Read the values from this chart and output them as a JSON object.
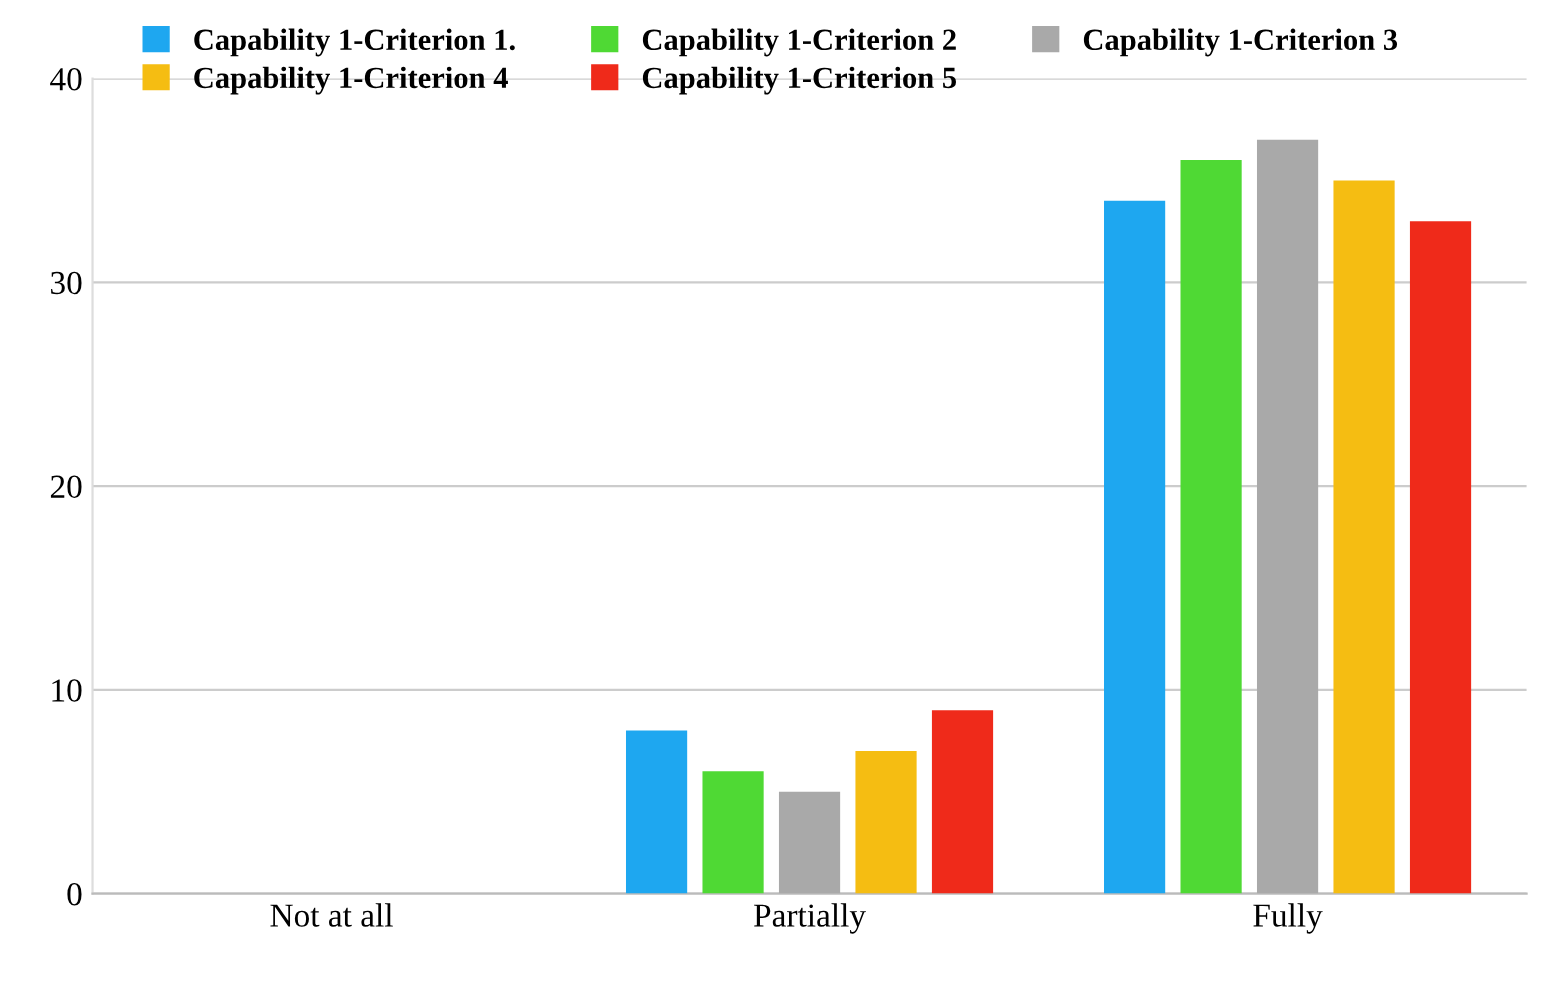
{
  "chart_data": {
    "type": "bar",
    "categories": [
      "Not at all",
      "Partially",
      "Fully"
    ],
    "series": [
      {
        "name": "Capability 1-Criterion 1.",
        "color": "#1ea7f0",
        "values": [
          0,
          8,
          34
        ]
      },
      {
        "name": "Capability 1-Criterion 2",
        "color": "#4fd934",
        "values": [
          0,
          6,
          36
        ]
      },
      {
        "name": "Capability 1-Criterion 3",
        "color": "#a9a9a9",
        "values": [
          0,
          5,
          37
        ]
      },
      {
        "name": "Capability 1-Criterion 4",
        "color": "#f5bd12",
        "values": [
          0,
          7,
          35
        ]
      },
      {
        "name": "Capability 1-Criterion 5",
        "color": "#ef2a1a",
        "values": [
          0,
          9,
          33
        ]
      }
    ],
    "ylim": [
      0,
      40
    ],
    "yticks": [
      0,
      10,
      20,
      30,
      40
    ],
    "grid": "y",
    "legend": "top"
  }
}
